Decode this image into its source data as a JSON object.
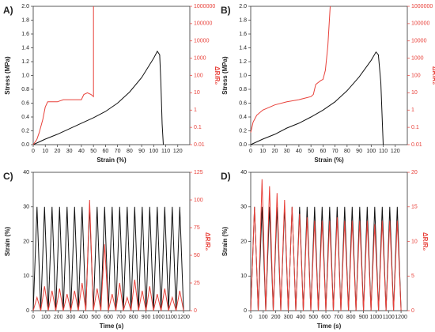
{
  "chart_data": [
    {
      "type": "line",
      "panel": "A)",
      "xlabel": "Strain (%)",
      "ylabel": "Stress (MPa)",
      "y2label": "ΔR/R₀",
      "xlim": [
        0,
        130
      ],
      "xticks": [
        0,
        10,
        20,
        30,
        40,
        50,
        60,
        70,
        80,
        90,
        100,
        110,
        120
      ],
      "ylim": [
        0,
        2
      ],
      "yticks": [
        {
          "value": 0,
          "label": "0.0"
        },
        0.2,
        0.4,
        0.6,
        0.8,
        {
          "value": 1,
          "label": "1.0"
        },
        1.2,
        1.4,
        1.6,
        1.8,
        {
          "value": 2,
          "label": "2.0"
        }
      ],
      "y2lim": [
        0.01,
        1000000
      ],
      "y2ticks": [
        0.01,
        0.1,
        1,
        10,
        100,
        1000,
        10000,
        100000,
        1000000
      ],
      "y2log": true,
      "y2color": "#e8413a",
      "series": [
        {
          "color": "#111111",
          "axis": "y",
          "x": [
            0,
            10,
            20,
            30,
            40,
            50,
            60,
            70,
            80,
            90,
            100,
            103,
            105,
            106,
            107,
            108
          ],
          "values": [
            0,
            0.08,
            0.15,
            0.23,
            0.31,
            0.39,
            0.48,
            0.6,
            0.76,
            0.97,
            1.25,
            1.35,
            1.3,
            0.9,
            0.3,
            0
          ]
        },
        {
          "color": "#e8413a",
          "axis": "y2",
          "x": [
            0,
            3,
            5,
            8,
            10,
            12,
            15,
            20,
            25,
            30,
            35,
            40,
            42,
            45,
            48,
            50,
            50
          ],
          "values": [
            0.01,
            0.02,
            0.05,
            0.3,
            1.5,
            3,
            3,
            3,
            4,
            4,
            4,
            4,
            8,
            10,
            8,
            6,
            1000000
          ]
        }
      ]
    },
    {
      "type": "line",
      "panel": "B)",
      "xlabel": "Strain (%)",
      "ylabel": "Stress (MPa)",
      "y2label": "ΔR/R₀",
      "xlim": [
        0,
        130
      ],
      "xticks": [
        0,
        10,
        20,
        30,
        40,
        50,
        60,
        70,
        80,
        90,
        100,
        110,
        120
      ],
      "ylim": [
        0,
        2
      ],
      "yticks": [
        {
          "value": 0,
          "label": "0.0"
        },
        0.2,
        0.4,
        0.6,
        0.8,
        {
          "value": 1,
          "label": "1.0"
        },
        1.2,
        1.4,
        1.6,
        1.8,
        {
          "value": 2,
          "label": "2.0"
        }
      ],
      "y2lim": [
        0.01,
        1000000
      ],
      "y2ticks": [
        0.01,
        0.1,
        1,
        10,
        100,
        1000,
        10000,
        100000,
        1000000
      ],
      "y2log": true,
      "y2color": "#e8413a",
      "series": [
        {
          "color": "#111111",
          "axis": "y",
          "x": [
            0,
            10,
            20,
            30,
            40,
            50,
            60,
            70,
            80,
            90,
            100,
            104,
            106,
            108,
            110
          ],
          "values": [
            0,
            0.08,
            0.15,
            0.24,
            0.31,
            0.4,
            0.5,
            0.62,
            0.78,
            0.98,
            1.22,
            1.34,
            1.3,
            0.9,
            0
          ]
        },
        {
          "color": "#e8413a",
          "axis": "y2",
          "x": [
            0,
            2,
            5,
            10,
            20,
            30,
            40,
            50,
            52,
            54,
            58,
            60,
            62,
            64,
            66
          ],
          "values": [
            0.05,
            0.2,
            0.5,
            1,
            2,
            3,
            4,
            6,
            8,
            30,
            50,
            60,
            200,
            5000,
            1000000
          ]
        }
      ]
    },
    {
      "type": "line",
      "panel": "C)",
      "xlabel": "Time (s)",
      "ylabel": "Strain (%)",
      "y2label": "ΔR/R₀",
      "xlim": [
        0,
        1250
      ],
      "xticks": [
        0,
        100,
        200,
        300,
        400,
        500,
        600,
        700,
        800,
        900,
        1000,
        1100,
        1200
      ],
      "ylim": [
        0,
        40
      ],
      "yticks": [
        0,
        10,
        20,
        30,
        40
      ],
      "y2lim": [
        0,
        125
      ],
      "y2ticks": [
        0,
        25,
        50,
        75,
        100,
        125
      ],
      "y2log": false,
      "y2color": "#e8413a",
      "series": [
        {
          "color": "#111111",
          "axis": "y",
          "x": [
            0,
            30,
            60,
            90,
            120,
            150,
            180,
            210,
            240,
            270,
            300,
            330,
            360,
            390,
            420,
            450,
            480,
            510,
            540,
            570,
            600,
            630,
            660,
            690,
            720,
            750,
            780,
            810,
            840,
            870,
            900,
            930,
            960,
            990,
            1020,
            1050,
            1080,
            1110,
            1140,
            1170,
            1200
          ],
          "values": [
            0,
            30,
            0,
            30,
            0,
            30,
            0,
            30,
            0,
            30,
            0,
            30,
            0,
            30,
            0,
            30,
            0,
            30,
            0,
            30,
            0,
            30,
            0,
            30,
            0,
            30,
            0,
            30,
            0,
            30,
            0,
            30,
            0,
            30,
            0,
            30,
            0,
            30,
            0,
            30,
            0
          ]
        },
        {
          "color": "#e8413a",
          "axis": "y2",
          "x": [
            0,
            30,
            60,
            90,
            120,
            150,
            180,
            210,
            240,
            270,
            300,
            330,
            360,
            390,
            420,
            450,
            480,
            510,
            540,
            570,
            600,
            630,
            660,
            690,
            720,
            750,
            780,
            810,
            840,
            870,
            900,
            930,
            960,
            990,
            1020,
            1050,
            1080,
            1110,
            1140,
            1170,
            1200
          ],
          "values": [
            0,
            12,
            0,
            22,
            0,
            18,
            0,
            20,
            0,
            15,
            0,
            18,
            0,
            25,
            0,
            100,
            0,
            20,
            0,
            60,
            0,
            15,
            0,
            25,
            0,
            12,
            0,
            28,
            0,
            18,
            0,
            22,
            0,
            15,
            0,
            20,
            0,
            12,
            0,
            18,
            0
          ]
        }
      ]
    },
    {
      "type": "line",
      "panel": "D)",
      "xlabel": "Time (s)",
      "ylabel": "Strain (%)",
      "y2label": "ΔR/R₀",
      "xlim": [
        0,
        1250
      ],
      "xticks": [
        0,
        100,
        200,
        300,
        400,
        500,
        600,
        700,
        800,
        900,
        1000,
        1100,
        1200
      ],
      "ylim": [
        0,
        40
      ],
      "yticks": [
        0,
        10,
        20,
        30,
        40
      ],
      "y2lim": [
        0,
        20
      ],
      "y2ticks": [
        0,
        5,
        10,
        15,
        20
      ],
      "y2log": false,
      "y2color": "#e8413a",
      "series": [
        {
          "color": "#111111",
          "axis": "y",
          "x": [
            0,
            30,
            60,
            90,
            120,
            150,
            180,
            210,
            240,
            270,
            300,
            330,
            360,
            390,
            420,
            450,
            480,
            510,
            540,
            570,
            600,
            630,
            660,
            690,
            720,
            750,
            780,
            810,
            840,
            870,
            900,
            930,
            960,
            990,
            1020,
            1050,
            1080,
            1110,
            1140,
            1170,
            1200
          ],
          "values": [
            0,
            30,
            0,
            30,
            0,
            30,
            0,
            30,
            0,
            30,
            0,
            30,
            0,
            30,
            0,
            30,
            0,
            30,
            0,
            30,
            0,
            30,
            0,
            30,
            0,
            30,
            0,
            30,
            0,
            30,
            0,
            30,
            0,
            30,
            0,
            30,
            0,
            30,
            0,
            30,
            0
          ]
        },
        {
          "color": "#e8413a",
          "axis": "y2",
          "x": [
            0,
            30,
            60,
            90,
            120,
            150,
            180,
            210,
            240,
            270,
            300,
            330,
            360,
            390,
            420,
            450,
            480,
            510,
            540,
            570,
            600,
            630,
            660,
            690,
            720,
            750,
            780,
            810,
            840,
            870,
            900,
            930,
            960,
            990,
            1020,
            1050,
            1080,
            1110,
            1140,
            1170,
            1200
          ],
          "values": [
            0,
            15,
            0,
            19,
            0,
            18,
            0,
            17,
            0,
            16,
            0,
            15,
            0,
            14,
            0,
            13.5,
            0,
            13,
            0,
            13,
            0,
            13,
            0,
            13.5,
            0,
            13,
            0,
            13,
            0,
            13,
            0,
            13,
            0,
            12.5,
            0,
            13,
            0,
            13,
            0,
            13,
            0
          ]
        }
      ]
    }
  ]
}
